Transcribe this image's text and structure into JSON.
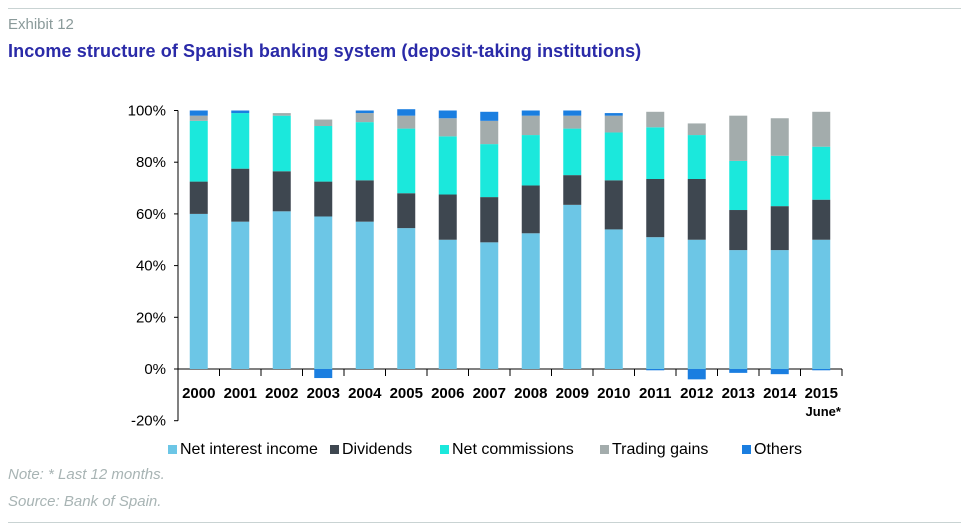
{
  "header": {
    "exhibit": "Exhibit 12",
    "title": "Income structure of Spanish banking system (deposit-taking institutions)"
  },
  "notes": {
    "note": "Note: * Last 12 months.",
    "source": "Source: Bank of Spain."
  },
  "chart_data": {
    "type": "bar",
    "stacked": true,
    "categories": [
      "2000",
      "2001",
      "2002",
      "2003",
      "2004",
      "2005",
      "2006",
      "2007",
      "2008",
      "2009",
      "2010",
      "2011",
      "2012",
      "2013",
      "2014",
      "2015"
    ],
    "category_sublabels": {
      "2015": "June*"
    },
    "yticks": [
      "-20%",
      "0%",
      "20%",
      "40%",
      "60%",
      "80%",
      "100%"
    ],
    "ylim": [
      -20,
      100
    ],
    "legend_position": "bottom",
    "series": [
      {
        "name": "Net interest income",
        "color": "#6cc6e6",
        "values": [
          60,
          57,
          61,
          59,
          57,
          54.5,
          50,
          49,
          52.5,
          63.5,
          54,
          51,
          50,
          46,
          46,
          50
        ]
      },
      {
        "name": "Dividends",
        "color": "#3e4750",
        "values": [
          12.5,
          20.5,
          15.5,
          13.5,
          16,
          13.5,
          17.5,
          17.5,
          18.5,
          11.5,
          19,
          22.5,
          23.5,
          15.5,
          17,
          15.5
        ]
      },
      {
        "name": "Net commissions",
        "color": "#1be8dc",
        "values": [
          23.5,
          21.5,
          21.5,
          21.5,
          22.5,
          25,
          22.5,
          20.5,
          19.5,
          18,
          18.5,
          20,
          17,
          19,
          19.5,
          20.5
        ]
      },
      {
        "name": "Trading gains",
        "color": "#a3acac",
        "values": [
          2,
          0,
          1,
          2.5,
          3.5,
          5,
          7,
          9,
          7.5,
          5,
          6.5,
          6,
          4.5,
          17.5,
          14.5,
          13.5
        ]
      },
      {
        "name": "Others",
        "color": "#1a7ee0",
        "values": [
          2,
          1,
          0,
          -3.5,
          1,
          2.5,
          3,
          3.5,
          2,
          2,
          1,
          -0.5,
          -4,
          -1.5,
          -2,
          -0.5
        ]
      }
    ]
  }
}
